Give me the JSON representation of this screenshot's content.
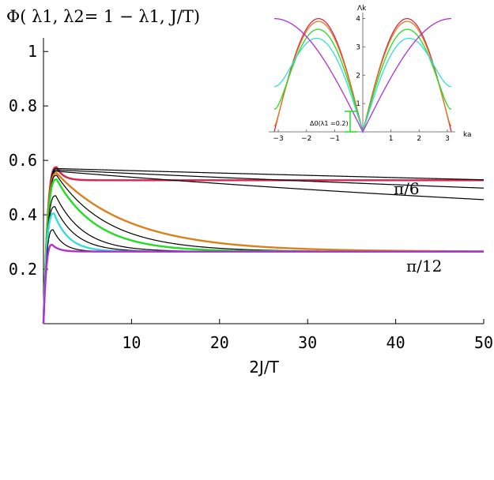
{
  "chart_data": [
    {
      "type": "line",
      "title": "Φ( λ1, λ2= 1 − λ1, J/T)",
      "xlabel": "2J/T",
      "ylabel": "",
      "xlim": [
        0,
        50
      ],
      "ylim": [
        0,
        1.05
      ],
      "x_ticks": [
        "10",
        "20",
        "30",
        "40",
        "50"
      ],
      "y_ticks": [
        "0.2",
        "0.4",
        "0.6",
        "0.8",
        "1"
      ],
      "annotations": [
        "π/6",
        "π/12"
      ],
      "series": [
        {
          "color": "#e0204a",
          "width": 2.4,
          "peak_x": 1.5,
          "peak_y": 0.575,
          "plateau": 0.527,
          "decay": 0
        },
        {
          "color": "#000000",
          "width": 1.2,
          "peak_x": 1.5,
          "peak_y": 0.57,
          "plateau": 0.265,
          "decay": 0.003
        },
        {
          "color": "#000000",
          "width": 1.2,
          "peak_x": 1.5,
          "peak_y": 0.565,
          "plateau": 0.265,
          "decay": 0.0052
        },
        {
          "color": "#000000",
          "width": 1.2,
          "peak_x": 1.5,
          "peak_y": 0.56,
          "plateau": 0.265,
          "decay": 0.009
        },
        {
          "color": "#d9801a",
          "width": 2.4,
          "peak_x": 1.5,
          "peak_y": 0.553,
          "plateau": 0.265,
          "decay": 0.12
        },
        {
          "color": "#000000",
          "width": 1.2,
          "peak_x": 1.5,
          "peak_y": 0.545,
          "plateau": 0.265,
          "decay": 0.17
        },
        {
          "color": "#22dd22",
          "width": 2.4,
          "peak_x": 1.5,
          "peak_y": 0.53,
          "plateau": 0.265,
          "decay": 0.22
        },
        {
          "color": "#000000",
          "width": 1.2,
          "peak_x": 1.4,
          "peak_y": 0.47,
          "plateau": 0.265,
          "decay": 0.32
        },
        {
          "color": "#000000",
          "width": 1.2,
          "peak_x": 1.3,
          "peak_y": 0.43,
          "plateau": 0.265,
          "decay": 0.42
        },
        {
          "color": "#33dddd",
          "width": 2.4,
          "peak_x": 1.2,
          "peak_y": 0.405,
          "plateau": 0.265,
          "decay": 0.6
        },
        {
          "color": "#000000",
          "width": 1.2,
          "peak_x": 1.1,
          "peak_y": 0.345,
          "plateau": 0.265,
          "decay": 0.85
        },
        {
          "color": "#b030d0",
          "width": 2.4,
          "peak_x": 1.0,
          "peak_y": 0.29,
          "plateau": 0.265,
          "decay": 1.3
        }
      ]
    },
    {
      "type": "line",
      "title": "",
      "xlabel": "ka",
      "ylabel": "Λk",
      "xlim": [
        -3.14159,
        3.14159
      ],
      "ylim": [
        0,
        4.1
      ],
      "x_ticks": [
        "−3",
        "−2",
        "−1",
        "1",
        "2",
        "3"
      ],
      "y_ticks": [
        "1",
        "2",
        "3",
        "4"
      ],
      "annotations": [
        "Δ0(λ1 =0.2)"
      ],
      "series": [
        {
          "color": "#e0204a",
          "lambda1": 0.0
        },
        {
          "color": "#d9801a",
          "lambda1": 0.05
        },
        {
          "color": "#22dd22",
          "lambda1": 0.2
        },
        {
          "color": "#33dddd",
          "lambda1": 0.4
        },
        {
          "color": "#b030d0",
          "lambda1": 1.0
        }
      ]
    }
  ]
}
